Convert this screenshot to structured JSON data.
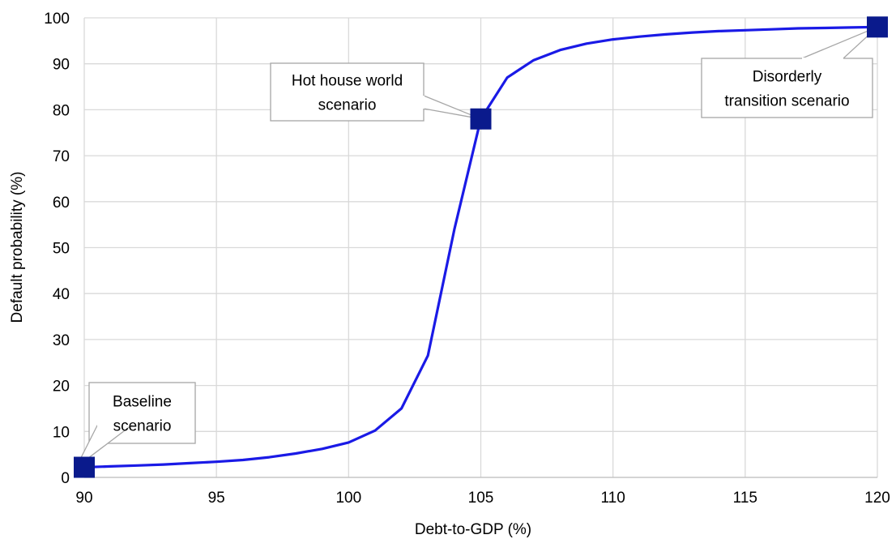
{
  "chart_data": {
    "type": "line",
    "title": "",
    "xlabel": "Debt-to-GDP (%)",
    "ylabel": "Default probability (%)",
    "xlim": [
      90,
      120
    ],
    "ylim": [
      0,
      100
    ],
    "x_ticks": [
      90,
      95,
      100,
      105,
      110,
      115,
      120
    ],
    "y_ticks": [
      0,
      10,
      20,
      30,
      40,
      50,
      60,
      70,
      80,
      90,
      100
    ],
    "grid": true,
    "legend": "none",
    "line_color": "#1a1ae6",
    "marker_color": "#0a1a8c",
    "series": [
      {
        "x": [
          90,
          91,
          92,
          93,
          94,
          95,
          96,
          97,
          98,
          99,
          100,
          101,
          102,
          103,
          104,
          105,
          106,
          107,
          108,
          109,
          110,
          111,
          112,
          113,
          114,
          115,
          116,
          117,
          118,
          119,
          120
        ],
        "y": [
          2.2,
          2.4,
          2.6,
          2.8,
          3.1,
          3.4,
          3.8,
          4.4,
          5.2,
          6.2,
          7.6,
          10.2,
          15.0,
          26.5,
          54.0,
          78.0,
          87.0,
          90.8,
          93.0,
          94.4,
          95.3,
          95.9,
          96.4,
          96.8,
          97.1,
          97.3,
          97.5,
          97.7,
          97.8,
          97.9,
          98.0
        ]
      }
    ],
    "highlighted_points": [
      {
        "x": 90,
        "y": 2.2
      },
      {
        "x": 105,
        "y": 78.0
      },
      {
        "x": 120,
        "y": 98.0
      }
    ],
    "annotations": [
      {
        "lines": [
          "Baseline",
          "scenario"
        ],
        "x": 90,
        "y": 2.2
      },
      {
        "lines": [
          "Hot house world",
          "scenario"
        ],
        "x": 105,
        "y": 78.0
      },
      {
        "lines": [
          "Disorderly",
          "transition scenario"
        ],
        "x": 120,
        "y": 98.0
      }
    ]
  }
}
